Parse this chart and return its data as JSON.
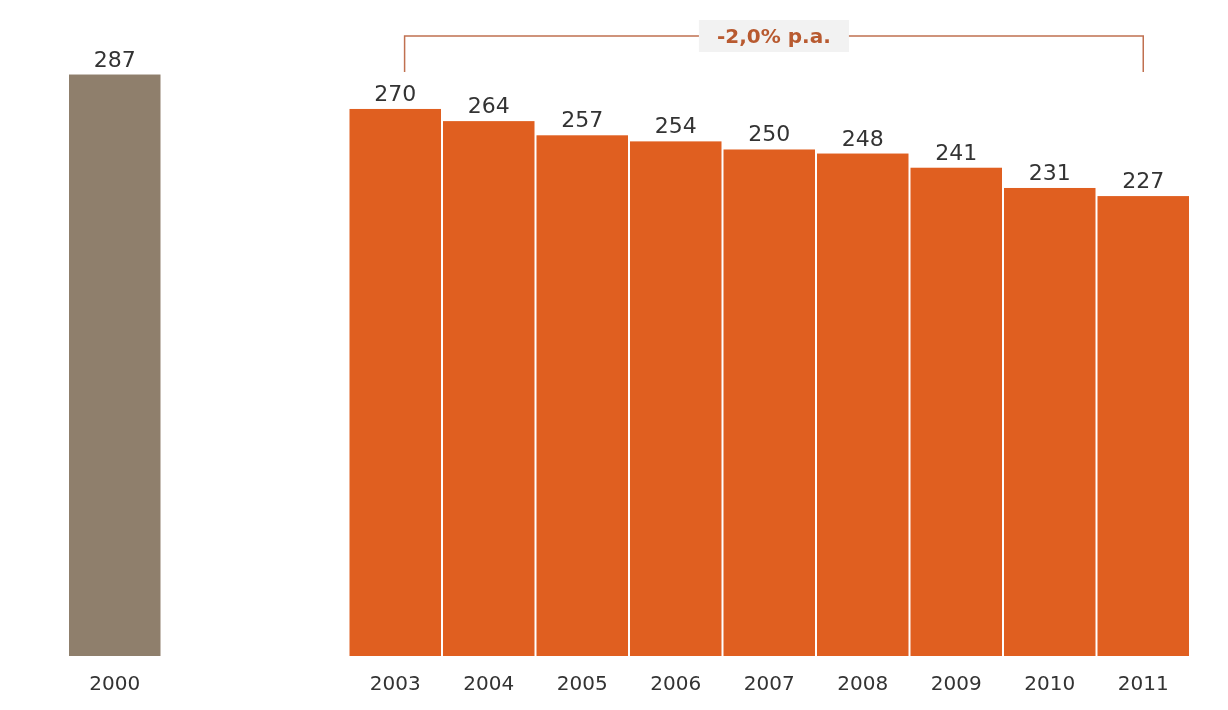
{
  "chart_data": {
    "type": "bar",
    "categories": [
      "2000",
      null,
      null,
      "2003",
      "2004",
      "2005",
      "2006",
      "2007",
      "2008",
      "2009",
      "2010",
      "2011"
    ],
    "values": [
      287,
      null,
      null,
      270,
      264,
      257,
      254,
      250,
      248,
      241,
      231,
      227
    ],
    "colors": [
      "#8f7f6c",
      null,
      null,
      "#e05f20",
      "#e05f20",
      "#e05f20",
      "#e05f20",
      "#e05f20",
      "#e05f20",
      "#e05f20",
      "#e05f20",
      "#e05f20"
    ],
    "tick_labels": "x",
    "data_labels": true,
    "annotations": [
      "-2,0% p.a."
    ]
  }
}
